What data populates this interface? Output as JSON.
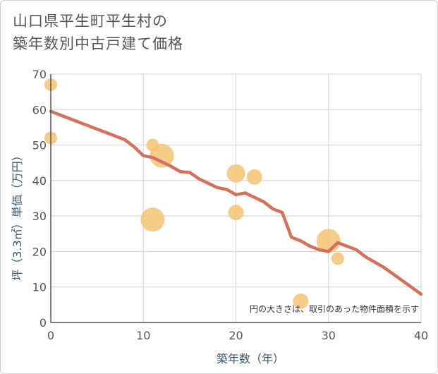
{
  "title_lines": [
    "山口県平生町平生村の",
    "築年数別中古戸建て価格"
  ],
  "chart_data": {
    "type": "scatter",
    "title": "山口県平生町平生村の築年数別中古戸建て価格",
    "xlabel": "築年数（年）",
    "ylabel": "坪（3.3㎡）単価（万円）",
    "xlim": [
      0,
      40
    ],
    "ylim": [
      0,
      70
    ],
    "x_ticks": [
      0,
      10,
      20,
      30,
      40
    ],
    "y_ticks": [
      0,
      10,
      20,
      30,
      40,
      50,
      60,
      70
    ],
    "grid": true,
    "note": "円の大きさは、取引のあった物件面積を示す",
    "colors": {
      "bubble": "#f5c374",
      "trend": "#d4705e",
      "grid": "#c9d3e0",
      "axis": "#555555"
    },
    "points": [
      {
        "x": 0,
        "y": 67,
        "size": 1
      },
      {
        "x": 0,
        "y": 52,
        "size": 1
      },
      {
        "x": 11,
        "y": 50,
        "size": 1
      },
      {
        "x": 12,
        "y": 47,
        "size": 3
      },
      {
        "x": 11,
        "y": 29,
        "size": 3
      },
      {
        "x": 20,
        "y": 42,
        "size": 2
      },
      {
        "x": 22,
        "y": 41,
        "size": 1.5
      },
      {
        "x": 20,
        "y": 31,
        "size": 1.5
      },
      {
        "x": 30,
        "y": 23,
        "size": 3
      },
      {
        "x": 31,
        "y": 18,
        "size": 1
      },
      {
        "x": 27,
        "y": 6,
        "size": 1.5
      }
    ],
    "trend_line": [
      {
        "x": 0,
        "y": 59.5
      },
      {
        "x": 2,
        "y": 57.5
      },
      {
        "x": 4,
        "y": 55.5
      },
      {
        "x": 6,
        "y": 53.5
      },
      {
        "x": 8,
        "y": 51.5
      },
      {
        "x": 9,
        "y": 49.5
      },
      {
        "x": 10,
        "y": 47
      },
      {
        "x": 11,
        "y": 46.5
      },
      {
        "x": 13,
        "y": 44
      },
      {
        "x": 14,
        "y": 42.5
      },
      {
        "x": 15,
        "y": 42.3
      },
      {
        "x": 16,
        "y": 40.5
      },
      {
        "x": 18,
        "y": 38
      },
      {
        "x": 19,
        "y": 37.5
      },
      {
        "x": 20,
        "y": 36
      },
      {
        "x": 21,
        "y": 36.5
      },
      {
        "x": 23,
        "y": 34
      },
      {
        "x": 24,
        "y": 32
      },
      {
        "x": 25,
        "y": 31
      },
      {
        "x": 26,
        "y": 24
      },
      {
        "x": 27,
        "y": 23
      },
      {
        "x": 28,
        "y": 21.5
      },
      {
        "x": 29,
        "y": 20.5
      },
      {
        "x": 30,
        "y": 20
      },
      {
        "x": 31,
        "y": 22.5
      },
      {
        "x": 33,
        "y": 20.5
      },
      {
        "x": 34,
        "y": 18.5
      },
      {
        "x": 36,
        "y": 15.5
      },
      {
        "x": 40,
        "y": 8
      }
    ]
  }
}
